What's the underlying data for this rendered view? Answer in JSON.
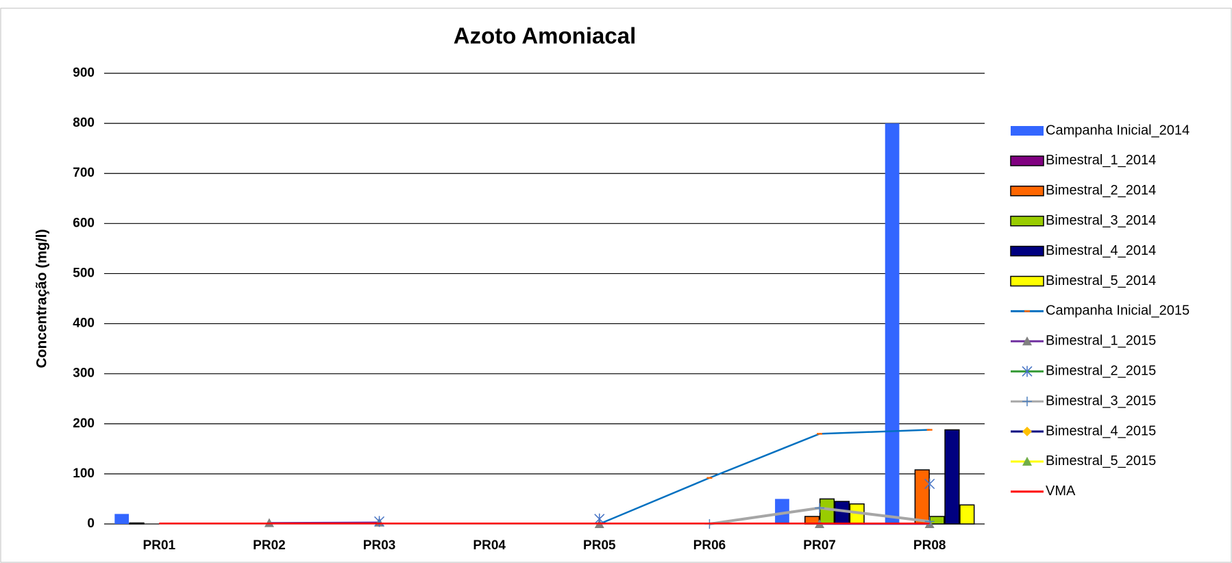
{
  "chart_data": {
    "type": "combo",
    "title": "Azoto Amoniacal",
    "y_label": "Concentração (mg/l)",
    "categories": [
      "PR01",
      "PR02",
      "PR03",
      "PR04",
      "PR05",
      "PR06",
      "PR07",
      "PR08"
    ],
    "ylim": [
      0,
      900
    ],
    "yticks": [
      0,
      100,
      200,
      300,
      400,
      500,
      600,
      700,
      800,
      900
    ],
    "grid": true,
    "legend": "right",
    "series": [
      {
        "name": "Campanha Inicial_2014",
        "type": "bar",
        "color": "#3366ff",
        "edge": "none",
        "values": [
          20,
          null,
          null,
          null,
          null,
          null,
          50,
          800
        ]
      },
      {
        "name": "Bimestral_1_2014",
        "type": "bar",
        "color": "#800080",
        "edge": "#000000",
        "values": [
          2,
          null,
          null,
          null,
          null,
          null,
          null,
          null
        ]
      },
      {
        "name": "Bimestral_2_2014",
        "type": "bar",
        "color": "#ff6600",
        "edge": "#000000",
        "values": [
          null,
          null,
          null,
          null,
          null,
          null,
          15,
          108
        ]
      },
      {
        "name": "Bimestral_3_2014",
        "type": "bar",
        "color": "#99cc00",
        "edge": "#000000",
        "values": [
          null,
          null,
          null,
          null,
          null,
          null,
          50,
          15
        ]
      },
      {
        "name": "Bimestral_4_2014",
        "type": "bar",
        "color": "#000080",
        "edge": "#000000",
        "values": [
          null,
          null,
          null,
          null,
          null,
          null,
          45,
          188
        ]
      },
      {
        "name": "Bimestral_5_2014",
        "type": "bar",
        "color": "#ffff00",
        "edge": "#000000",
        "values": [
          null,
          null,
          null,
          null,
          null,
          null,
          40,
          38
        ]
      },
      {
        "name": "Campanha Inicial_2015",
        "type": "line",
        "color": "#0070c0",
        "marker": "dash",
        "marker_color": "#ff6600",
        "values": [
          null,
          null,
          null,
          null,
          0,
          92,
          180,
          188
        ]
      },
      {
        "name": "Bimestral_1_2015",
        "type": "line",
        "color": "#7030a0",
        "marker": "triangle",
        "marker_color": "#808080",
        "values": [
          null,
          2,
          3,
          null,
          0,
          null,
          0,
          0
        ]
      },
      {
        "name": "Bimestral_2_2015",
        "type": "line",
        "color": "#339933",
        "marker": "star",
        "marker_color": "#4472c4",
        "values": [
          null,
          null,
          5,
          null,
          10,
          null,
          null,
          80
        ]
      },
      {
        "name": "Bimestral_3_2015",
        "type": "line",
        "color": "#a6a6a6",
        "marker": "plus",
        "marker_color": "#4f81bd",
        "values": [
          null,
          null,
          null,
          null,
          null,
          0,
          32,
          5
        ]
      },
      {
        "name": "Bimestral_4_2015",
        "type": "line",
        "color": "#000080",
        "marker": "diamond",
        "marker_color": "#ffc000",
        "values": [
          null,
          null,
          null,
          null,
          null,
          null,
          null,
          null
        ]
      },
      {
        "name": "Bimestral_5_2015",
        "type": "line",
        "color": "#ffff00",
        "marker": "triangle",
        "marker_color": "#70ad47",
        "values": [
          null,
          null,
          null,
          null,
          null,
          null,
          null,
          null
        ]
      },
      {
        "name": "VMA",
        "type": "line",
        "color": "#ff0000",
        "marker": "none",
        "marker_color": "#ff0000",
        "values": [
          1,
          1,
          1,
          1,
          1,
          1,
          1,
          1
        ]
      }
    ]
  }
}
